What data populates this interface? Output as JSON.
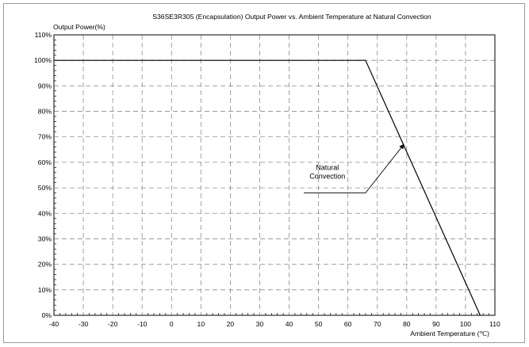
{
  "chart_data": {
    "type": "line",
    "title": "S36SE3R305 (Encapsulation)  Output Power vs. Ambient Temperature at Natural Convection",
    "ylabel": "Output Power(%)",
    "xlabel": "Ambient Temperature (℃)",
    "xlim": [
      -40,
      110
    ],
    "ylim": [
      0,
      110
    ],
    "x_ticks": [
      -40,
      -30,
      -20,
      -10,
      0,
      10,
      20,
      30,
      40,
      50,
      60,
      70,
      80,
      90,
      100,
      110
    ],
    "x_tick_labels": [
      "-40",
      "-30",
      "-20",
      "-10",
      "0",
      "10",
      "20",
      "30",
      "40",
      "50",
      "60",
      "70",
      "80",
      "90",
      "100",
      "110"
    ],
    "y_ticks": [
      0,
      10,
      20,
      30,
      40,
      50,
      60,
      70,
      80,
      90,
      100,
      110
    ],
    "y_tick_labels": [
      "0%",
      "10%",
      "20%",
      "30%",
      "40%",
      "50%",
      "60%",
      "70%",
      "80%",
      "90%",
      "100%",
      "110%"
    ],
    "grid": true,
    "series": [
      {
        "x": [
          -40,
          66,
          105
        ],
        "y": [
          100,
          100,
          0
        ]
      }
    ],
    "annotation": {
      "lines": [
        "Natural",
        "Convection"
      ],
      "text_at": [
        53,
        57
      ],
      "leader_from": [
        45,
        48
      ],
      "leader_corner": [
        66,
        48
      ],
      "arrow_to": [
        79,
        67
      ]
    }
  }
}
